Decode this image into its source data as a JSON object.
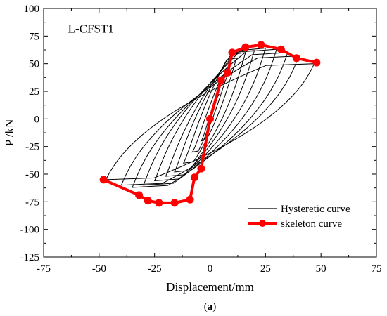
{
  "chart_data": {
    "type": "line",
    "annotation": "L-CFST1",
    "xlabel": "Displacement/mm",
    "ylabel": "P /kN",
    "caption_parts": [
      "(",
      "a",
      ")"
    ],
    "xlim": [
      -75,
      75
    ],
    "ylim": [
      -125,
      100
    ],
    "xticks": [
      -75,
      -50,
      -25,
      0,
      25,
      50,
      75
    ],
    "yticks": [
      -125,
      -100,
      -75,
      -50,
      -25,
      0,
      25,
      50,
      75,
      100
    ],
    "grid": false,
    "legend_position": "lower-right",
    "series": [
      {
        "name": "Hysteretic curve",
        "color": "#000000",
        "loops": [
          {
            "pos_peak": [
              4,
              22
            ],
            "neg_peak": [
              -4,
              -20
            ],
            "pos_exit": [
              1,
              14
            ],
            "neg_exit": [
              -1,
              -12
            ]
          },
          {
            "pos_peak": [
              8,
              40
            ],
            "neg_peak": [
              -8,
              -30
            ],
            "pos_exit": [
              3,
              18
            ],
            "neg_exit": [
              -3,
              -16
            ]
          },
          {
            "pos_peak": [
              12,
              55
            ],
            "neg_peak": [
              -12,
              -40
            ],
            "pos_exit": [
              6,
              20
            ],
            "neg_exit": [
              -6,
              -20
            ]
          },
          {
            "pos_peak": [
              16,
              60
            ],
            "neg_peak": [
              -16,
              -48
            ],
            "pos_exit": [
              10,
              22
            ],
            "neg_exit": [
              -10,
              -24
            ]
          },
          {
            "pos_peak": [
              20,
              62
            ],
            "neg_peak": [
              -20,
              -52
            ],
            "pos_exit": [
              14,
              24
            ],
            "neg_exit": [
              -14,
              -28
            ]
          },
          {
            "pos_peak": [
              25,
              64
            ],
            "neg_peak": [
              -25,
              -56
            ],
            "pos_exit": [
              19,
              25
            ],
            "neg_exit": [
              -19,
              -30
            ]
          },
          {
            "pos_peak": [
              30,
              63
            ],
            "neg_peak": [
              -30,
              -60
            ],
            "pos_exit": [
              24,
              26
            ],
            "neg_exit": [
              -24,
              -32
            ]
          },
          {
            "pos_peak": [
              35,
              60
            ],
            "neg_peak": [
              -35,
              -62
            ],
            "pos_exit": [
              29,
              26
            ],
            "neg_exit": [
              -29,
              -34
            ]
          },
          {
            "pos_peak": [
              40,
              57
            ],
            "neg_peak": [
              -40,
              -60
            ],
            "pos_exit": [
              34,
              25
            ],
            "neg_exit": [
              -34,
              -34
            ]
          },
          {
            "pos_peak": [
              47,
              50
            ],
            "neg_peak": [
              -47,
              -55
            ],
            "pos_exit": [
              40,
              22
            ],
            "neg_exit": [
              -40,
              -30
            ]
          }
        ]
      },
      {
        "name": "skeleton curve",
        "color": "#ff0000",
        "x": [
          -48,
          -32,
          -28,
          -23,
          -16,
          -9,
          -7,
          -4,
          0,
          5,
          8,
          10,
          16,
          23,
          32,
          39,
          48
        ],
        "y": [
          -55,
          -69,
          -74,
          -76,
          -76,
          -73,
          -53,
          -45,
          0,
          35,
          42,
          60,
          65,
          67,
          63,
          55,
          51
        ]
      }
    ]
  }
}
